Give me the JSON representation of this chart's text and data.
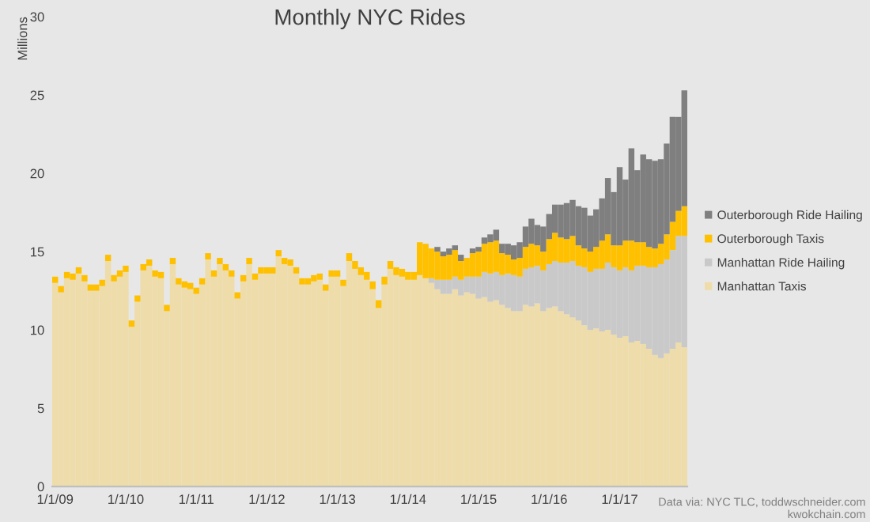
{
  "chart_data": {
    "type": "bar",
    "stacked": true,
    "title": "Monthly NYC Rides",
    "ylabel": "Millions",
    "categories": [
      "1/1/09",
      null,
      null,
      null,
      null,
      null,
      null,
      null,
      null,
      null,
      null,
      null,
      "1/1/10",
      null,
      null,
      null,
      null,
      null,
      null,
      null,
      null,
      null,
      null,
      null,
      "1/1/11",
      null,
      null,
      null,
      null,
      null,
      null,
      null,
      null,
      null,
      null,
      null,
      "1/1/12",
      null,
      null,
      null,
      null,
      null,
      null,
      null,
      null,
      null,
      null,
      null,
      "1/1/13",
      null,
      null,
      null,
      null,
      null,
      null,
      null,
      null,
      null,
      null,
      null,
      "1/1/14",
      null,
      null,
      null,
      null,
      null,
      null,
      null,
      null,
      null,
      null,
      null,
      "1/1/15",
      null,
      null,
      null,
      null,
      null,
      null,
      null,
      null,
      null,
      null,
      null,
      "1/1/16",
      null,
      null,
      null,
      null,
      null,
      null,
      null,
      null,
      null,
      null,
      null,
      "1/1/17",
      null,
      null,
      null,
      null,
      null,
      null,
      null,
      null,
      null,
      null,
      null
    ],
    "series": [
      {
        "name": "Manhattan Taxis",
        "color": "#eedcaa",
        "values": [
          13.0,
          12.4,
          13.3,
          13.2,
          13.6,
          13.1,
          12.5,
          12.5,
          12.8,
          14.4,
          13.1,
          13.4,
          13.7,
          10.2,
          11.8,
          13.8,
          14.1,
          13.4,
          13.3,
          11.2,
          14.2,
          12.9,
          12.7,
          12.6,
          12.3,
          12.9,
          14.5,
          13.4,
          14.2,
          13.8,
          13.4,
          12.0,
          13.1,
          14.2,
          13.2,
          13.6,
          13.6,
          13.6,
          14.7,
          14.2,
          14.1,
          13.6,
          12.9,
          12.9,
          13.1,
          13.2,
          12.5,
          13.4,
          13.4,
          12.8,
          14.4,
          13.9,
          13.5,
          13.2,
          12.6,
          11.4,
          12.9,
          13.9,
          13.5,
          13.4,
          13.2,
          13.2,
          13.5,
          13.3,
          13.0,
          12.6,
          12.3,
          12.3,
          12.6,
          12.2,
          12.4,
          12.3,
          12.0,
          12.1,
          11.8,
          11.9,
          11.6,
          11.4,
          11.2,
          11.2,
          11.6,
          11.5,
          11.7,
          11.2,
          11.4,
          11.5,
          11.2,
          11.0,
          10.8,
          10.6,
          10.3,
          10.0,
          10.1,
          9.9,
          10.0,
          9.7,
          9.5,
          9.6,
          9.2,
          9.3,
          9.1,
          8.8,
          8.4,
          8.2,
          8.5,
          8.8,
          9.2,
          8.9
        ]
      },
      {
        "name": "Manhattan Ride Hailing",
        "color": "#c9c9c9",
        "values": [
          0,
          0,
          0,
          0,
          0,
          0,
          0,
          0,
          0,
          0,
          0,
          0,
          0,
          0,
          0,
          0,
          0,
          0,
          0,
          0,
          0,
          0,
          0,
          0,
          0,
          0,
          0,
          0,
          0,
          0,
          0,
          0,
          0,
          0,
          0,
          0,
          0,
          0,
          0,
          0,
          0,
          0,
          0,
          0,
          0,
          0,
          0,
          0,
          0,
          0,
          0,
          0,
          0,
          0,
          0,
          0,
          0,
          0,
          0,
          0,
          0,
          0,
          0,
          0,
          0.3,
          0.6,
          0.9,
          0.9,
          0.8,
          1.0,
          1.0,
          1.1,
          1.4,
          1.6,
          1.8,
          1.8,
          1.9,
          2.2,
          2.3,
          2.2,
          2.3,
          2.5,
          2.4,
          2.6,
          2.8,
          2.9,
          3.1,
          3.3,
          3.6,
          3.5,
          3.7,
          3.7,
          3.8,
          4.0,
          4.3,
          4.3,
          4.3,
          4.4,
          4.6,
          4.8,
          5.0,
          5.2,
          5.6,
          6.0,
          6.0,
          6.3,
          6.8,
          7.1
        ]
      },
      {
        "name": "Outerborough Taxis",
        "color": "#ffc000",
        "values": [
          0.4,
          0.4,
          0.4,
          0.4,
          0.4,
          0.4,
          0.4,
          0.4,
          0.4,
          0.4,
          0.4,
          0.4,
          0.4,
          0.4,
          0.4,
          0.4,
          0.4,
          0.4,
          0.4,
          0.4,
          0.4,
          0.4,
          0.4,
          0.4,
          0.4,
          0.4,
          0.4,
          0.4,
          0.4,
          0.4,
          0.4,
          0.4,
          0.4,
          0.4,
          0.4,
          0.4,
          0.4,
          0.4,
          0.4,
          0.4,
          0.4,
          0.4,
          0.4,
          0.4,
          0.4,
          0.4,
          0.4,
          0.4,
          0.4,
          0.4,
          0.5,
          0.5,
          0.5,
          0.5,
          0.5,
          0.5,
          0.5,
          0.5,
          0.5,
          0.5,
          0.5,
          0.5,
          2.1,
          2.2,
          1.9,
          1.8,
          1.5,
          1.6,
          1.7,
          1.2,
          1.2,
          1.5,
          1.6,
          1.8,
          2.0,
          2.0,
          1.4,
          1.2,
          1.0,
          1.2,
          1.4,
          1.5,
          1.3,
          1.2,
          1.6,
          1.8,
          1.6,
          1.5,
          1.6,
          1.3,
          1.2,
          1.3,
          1.4,
          1.8,
          1.8,
          1.4,
          1.6,
          1.7,
          1.9,
          1.5,
          1.5,
          1.3,
          1.2,
          1.3,
          1.6,
          1.8,
          1.6,
          1.9
        ]
      },
      {
        "name": "Outerborough Ride Hailing",
        "color": "#7f7f7f",
        "values": [
          0,
          0,
          0,
          0,
          0,
          0,
          0,
          0,
          0,
          0,
          0,
          0,
          0,
          0,
          0,
          0,
          0,
          0,
          0,
          0,
          0,
          0,
          0,
          0,
          0,
          0,
          0,
          0,
          0,
          0,
          0,
          0,
          0,
          0,
          0,
          0,
          0,
          0,
          0,
          0,
          0,
          0,
          0,
          0,
          0,
          0,
          0,
          0,
          0,
          0,
          0,
          0,
          0,
          0,
          0,
          0,
          0,
          0,
          0,
          0,
          0,
          0,
          0,
          0,
          0,
          0.3,
          0.3,
          0.4,
          0.3,
          0.4,
          0,
          0.3,
          0.3,
          0.4,
          0.5,
          0.7,
          0.6,
          0.7,
          0.9,
          1.0,
          1.3,
          1.6,
          1.3,
          1.6,
          1.6,
          1.8,
          2.1,
          2.3,
          2.3,
          2.5,
          2.6,
          2.3,
          2.4,
          2.7,
          3.6,
          3.4,
          5.0,
          3.9,
          5.9,
          4.6,
          5.6,
          5.6,
          5.6,
          5.4,
          5.8,
          6.7,
          6.0,
          7.4
        ]
      }
    ],
    "ylim": [
      0,
      30
    ],
    "yticks": [
      0,
      5,
      10,
      15,
      20,
      25,
      30
    ],
    "grid": false,
    "legend": "right",
    "annotations": [
      "Data via: NYC TLC, toddwschneider.com\nkwokchain.com"
    ]
  }
}
